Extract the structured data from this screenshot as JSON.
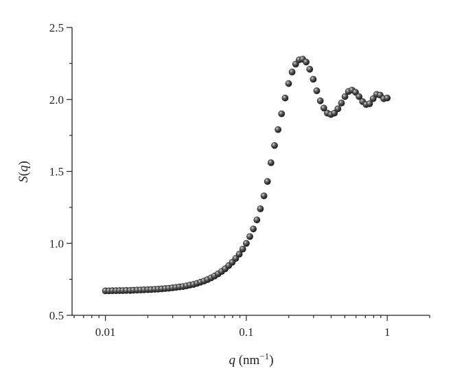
{
  "chart_data": {
    "type": "scatter",
    "title": "",
    "xlabel": {
      "symbol": "q",
      "unit": "(nm",
      "exp": "−1",
      "close": ")"
    },
    "ylabel": {
      "symbol": "S",
      "open": "(",
      "arg": "q",
      "close": ")"
    },
    "x_scale": "log",
    "xlim": [
      0.0058,
      2.0
    ],
    "ylim": [
      0.5,
      2.5
    ],
    "x_ticks": [
      {
        "value": 0.01,
        "label": "0.01"
      },
      {
        "value": 0.1,
        "label": "0.1"
      },
      {
        "value": 1,
        "label": "1"
      }
    ],
    "y_ticks": [
      {
        "value": 0.5,
        "label": "0.5"
      },
      {
        "value": 1.0,
        "label": "1.0"
      },
      {
        "value": 1.5,
        "label": "1.5"
      },
      {
        "value": 2.0,
        "label": "2.0"
      },
      {
        "value": 2.5,
        "label": "2.5"
      }
    ],
    "grid": false,
    "legend": "none",
    "marker_color": "#2a2a2a",
    "series": [
      {
        "points": [
          [
            0.01,
            0.67
          ],
          [
            0.0106,
            0.67
          ],
          [
            0.0112,
            0.671
          ],
          [
            0.0119,
            0.671
          ],
          [
            0.0126,
            0.672
          ],
          [
            0.0133,
            0.672
          ],
          [
            0.0141,
            0.673
          ],
          [
            0.015,
            0.673
          ],
          [
            0.0158,
            0.674
          ],
          [
            0.0168,
            0.675
          ],
          [
            0.0178,
            0.676
          ],
          [
            0.0188,
            0.677
          ],
          [
            0.02,
            0.678
          ],
          [
            0.0211,
            0.679
          ],
          [
            0.0224,
            0.681
          ],
          [
            0.0237,
            0.682
          ],
          [
            0.0251,
            0.684
          ],
          [
            0.0266,
            0.686
          ],
          [
            0.0282,
            0.688
          ],
          [
            0.0299,
            0.691
          ],
          [
            0.0316,
            0.694
          ],
          [
            0.0335,
            0.697
          ],
          [
            0.0355,
            0.7
          ],
          [
            0.0376,
            0.705
          ],
          [
            0.0398,
            0.71
          ],
          [
            0.0422,
            0.715
          ],
          [
            0.0447,
            0.722
          ],
          [
            0.0473,
            0.73
          ],
          [
            0.0501,
            0.738
          ],
          [
            0.0531,
            0.748
          ],
          [
            0.0562,
            0.76
          ],
          [
            0.0596,
            0.773
          ],
          [
            0.0631,
            0.788
          ],
          [
            0.0668,
            0.805
          ],
          [
            0.0708,
            0.823
          ],
          [
            0.075,
            0.845
          ],
          [
            0.0794,
            0.868
          ],
          [
            0.0841,
            0.895
          ],
          [
            0.0891,
            0.925
          ],
          [
            0.0944,
            0.96
          ],
          [
            0.1,
            1.0
          ],
          [
            0.1059,
            1.047
          ],
          [
            0.1122,
            1.1
          ],
          [
            0.1189,
            1.163
          ],
          [
            0.1259,
            1.24
          ],
          [
            0.1334,
            1.33
          ],
          [
            0.1413,
            1.43
          ],
          [
            0.1496,
            1.56
          ],
          [
            0.1585,
            1.68
          ],
          [
            0.1679,
            1.79
          ],
          [
            0.1778,
            1.9
          ],
          [
            0.1884,
            2.01
          ],
          [
            0.1995,
            2.11
          ],
          [
            0.2113,
            2.19
          ],
          [
            0.2239,
            2.245
          ],
          [
            0.2371,
            2.275
          ],
          [
            0.2512,
            2.28
          ],
          [
            0.2661,
            2.26
          ],
          [
            0.2818,
            2.21
          ],
          [
            0.2985,
            2.14
          ],
          [
            0.3162,
            2.06
          ],
          [
            0.335,
            1.99
          ],
          [
            0.3548,
            1.94
          ],
          [
            0.3758,
            1.905
          ],
          [
            0.3981,
            1.895
          ],
          [
            0.4217,
            1.905
          ],
          [
            0.4467,
            1.935
          ],
          [
            0.4732,
            1.975
          ],
          [
            0.5012,
            2.02
          ],
          [
            0.5309,
            2.055
          ],
          [
            0.5623,
            2.065
          ],
          [
            0.5957,
            2.05
          ],
          [
            0.631,
            2.02
          ],
          [
            0.6683,
            1.985
          ],
          [
            0.7079,
            1.965
          ],
          [
            0.7499,
            1.97
          ],
          [
            0.7943,
            2.005
          ],
          [
            0.8414,
            2.035
          ],
          [
            0.8913,
            2.03
          ],
          [
            0.9441,
            2.005
          ],
          [
            1.0,
            2.01
          ]
        ]
      }
    ]
  }
}
